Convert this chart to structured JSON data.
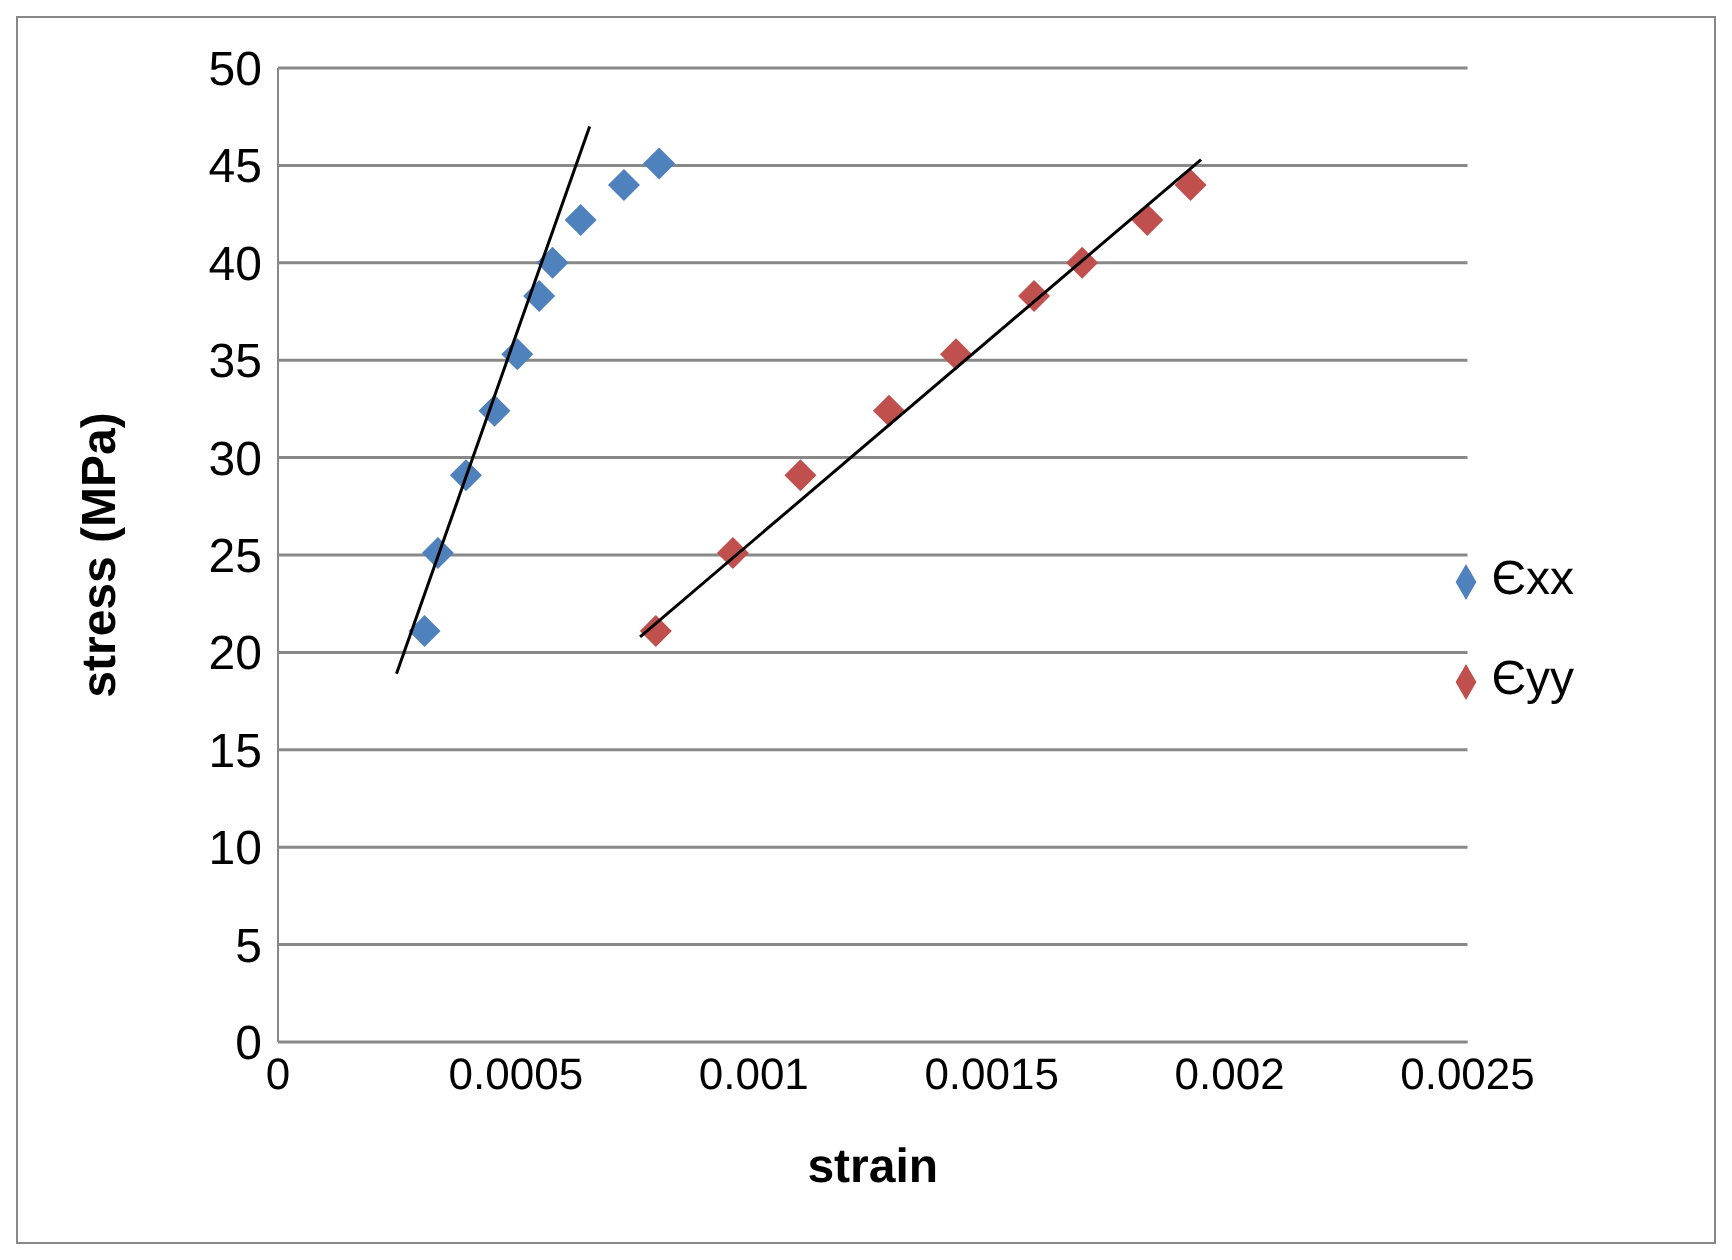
{
  "chart_data": {
    "type": "scatter",
    "xlabel": "strain",
    "ylabel": "stress (MPa)",
    "xlim": [
      0,
      0.0025
    ],
    "xticks": [
      0,
      0.0005,
      0.001,
      0.0015,
      0.002,
      0.0025
    ],
    "ylim": [
      0,
      50
    ],
    "yticks": [
      0,
      5,
      10,
      15,
      20,
      25,
      30,
      35,
      40,
      45,
      50
    ],
    "grid": "y",
    "legend": "right",
    "marker": "diamond",
    "series": [
      {
        "name": "Єxx",
        "color": "#4f81bd",
        "x": [
          0.000308,
          0.000336,
          0.000395,
          0.000455,
          0.000503,
          0.000549,
          0.000577,
          0.000636,
          0.000727,
          0.000801
        ],
        "values": [
          21.1,
          25.1,
          29.1,
          32.4,
          35.3,
          38.3,
          40.0,
          42.2,
          44.0,
          45.1
        ]
      },
      {
        "name": "Єyy",
        "color": "#c0504d",
        "x": [
          0.000794,
          0.000956,
          0.001098,
          0.001284,
          0.001425,
          0.001589,
          0.00169,
          0.001827,
          0.001918
        ],
        "values": [
          21.1,
          25.1,
          29.1,
          32.4,
          35.3,
          38.3,
          40.0,
          42.2,
          44.0
        ]
      },
      {
        "type": "line",
        "color": "#000000",
        "marker": "none",
        "x": [
          0.000249,
          0.000655
        ],
        "values": [
          18.9,
          47.0
        ]
      },
      {
        "type": "line",
        "color": "#000000",
        "marker": "none",
        "x": [
          0.000761,
          0.00194
        ],
        "values": [
          20.8,
          45.3
        ]
      }
    ]
  }
}
